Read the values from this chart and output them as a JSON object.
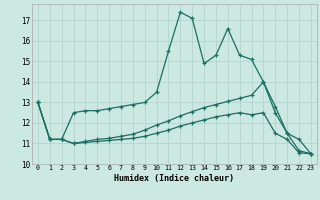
{
  "xlabel": "Humidex (Indice chaleur)",
  "bg_color": "#cce8e2",
  "line_color": "#1a6e62",
  "grid_color": "#b2d0ca",
  "xlim": [
    -0.5,
    23.5
  ],
  "ylim": [
    10.0,
    17.8
  ],
  "xticks": [
    0,
    1,
    2,
    3,
    4,
    5,
    6,
    7,
    8,
    9,
    10,
    11,
    12,
    13,
    14,
    15,
    16,
    17,
    18,
    19,
    20,
    21,
    22,
    23
  ],
  "yticks": [
    10,
    11,
    12,
    13,
    14,
    15,
    16,
    17
  ],
  "line1_x": [
    0,
    1,
    2,
    3,
    4,
    5,
    6,
    7,
    8,
    9,
    10,
    11,
    12,
    13,
    14,
    15,
    16,
    17,
    18,
    19,
    20,
    21,
    22,
    23
  ],
  "line1_y": [
    13.0,
    11.2,
    11.2,
    12.5,
    12.6,
    12.6,
    12.7,
    12.8,
    12.9,
    13.0,
    13.5,
    15.5,
    17.4,
    17.1,
    14.9,
    15.3,
    16.6,
    15.3,
    15.1,
    14.0,
    12.5,
    11.5,
    11.2,
    10.5
  ],
  "line2_x": [
    0,
    1,
    2,
    3,
    4,
    5,
    6,
    7,
    8,
    9,
    10,
    11,
    12,
    13,
    14,
    15,
    16,
    17,
    18,
    19,
    20,
    21,
    22,
    23
  ],
  "line2_y": [
    13.0,
    11.2,
    11.2,
    11.0,
    11.05,
    11.1,
    11.15,
    11.2,
    11.25,
    11.35,
    11.5,
    11.65,
    11.85,
    12.0,
    12.15,
    12.3,
    12.4,
    12.5,
    12.4,
    12.5,
    11.5,
    11.2,
    10.55,
    10.5
  ],
  "line3_x": [
    0,
    1,
    2,
    3,
    4,
    5,
    6,
    7,
    8,
    9,
    10,
    11,
    12,
    13,
    14,
    15,
    16,
    17,
    18,
    19,
    20,
    21,
    22,
    23
  ],
  "line3_y": [
    13.0,
    11.2,
    11.2,
    11.0,
    11.1,
    11.2,
    11.25,
    11.35,
    11.45,
    11.65,
    11.9,
    12.1,
    12.35,
    12.55,
    12.75,
    12.9,
    13.05,
    13.2,
    13.35,
    14.0,
    12.8,
    11.5,
    10.65,
    10.5
  ]
}
